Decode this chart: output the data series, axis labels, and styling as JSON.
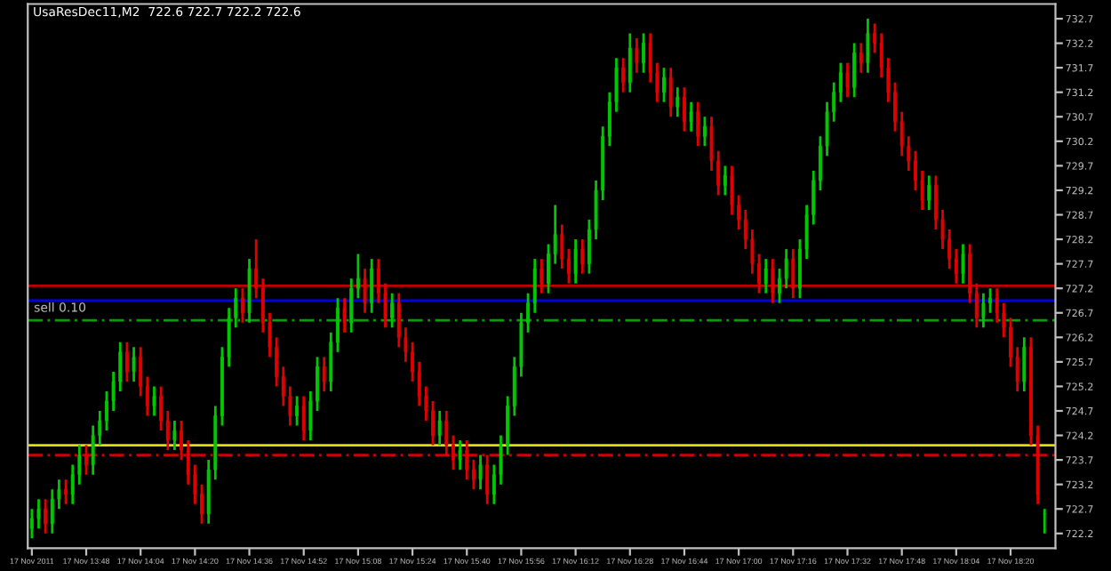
{
  "chart_data": {
    "type": "candlestick",
    "title": "UsaResDec11,M2  722.6 722.7 722.2 722.6",
    "categories": [
      "17 Nov 2011",
      null,
      null,
      null,
      null,
      null,
      null,
      null,
      "17 Nov 13:48",
      null,
      null,
      null,
      null,
      null,
      null,
      null,
      "17 Nov 14:04",
      null,
      null,
      null,
      null,
      null,
      null,
      null,
      "17 Nov 14:20",
      null,
      null,
      null,
      null,
      null,
      null,
      null,
      "17 Nov 14:36",
      null,
      null,
      null,
      null,
      null,
      null,
      null,
      "17 Nov 14:52",
      null,
      null,
      null,
      null,
      null,
      null,
      null,
      "17 Nov 15:08",
      null,
      null,
      null,
      null,
      null,
      null,
      null,
      "17 Nov 15:24",
      null,
      null,
      null,
      null,
      null,
      null,
      null,
      "17 Nov 15:40",
      null,
      null,
      null,
      null,
      null,
      null,
      null,
      "17 Nov 15:56",
      null,
      null,
      null,
      null,
      null,
      null,
      null,
      "17 Nov 16:12",
      null,
      null,
      null,
      null,
      null,
      null,
      null,
      "17 Nov 16:28",
      null,
      null,
      null,
      null,
      null,
      null,
      null,
      "17 Nov 16:44",
      null,
      null,
      null,
      null,
      null,
      null,
      null,
      "17 Nov 17:00",
      null,
      null,
      null,
      null,
      null,
      null,
      null,
      "17 Nov 17:16",
      null,
      null,
      null,
      null,
      null,
      null,
      null,
      "17 Nov 17:32",
      null,
      null,
      null,
      null,
      null,
      null,
      null,
      "17 Nov 17:48",
      null,
      null,
      null,
      null,
      null,
      null,
      null,
      "17 Nov 18:04",
      null,
      null,
      null,
      null,
      null,
      null,
      null,
      "17 Nov 18:20",
      null,
      null,
      null,
      null,
      null
    ],
    "ohlc": [
      [
        722.3,
        722.7,
        722.1,
        722.5
      ],
      [
        722.5,
        722.9,
        722.3,
        722.7
      ],
      [
        722.7,
        722.9,
        722.2,
        722.4
      ],
      [
        722.4,
        723.1,
        722.2,
        722.9
      ],
      [
        722.9,
        723.3,
        722.7,
        723.1
      ],
      [
        723.1,
        723.3,
        722.8,
        723.0
      ],
      [
        723.0,
        723.6,
        722.8,
        723.4
      ],
      [
        723.4,
        724.0,
        723.2,
        723.8
      ],
      [
        723.8,
        724.0,
        723.4,
        723.6
      ],
      [
        723.6,
        724.4,
        723.4,
        724.2
      ],
      [
        724.2,
        724.7,
        724.0,
        724.5
      ],
      [
        724.5,
        725.1,
        724.3,
        724.9
      ],
      [
        724.9,
        725.5,
        724.7,
        725.3
      ],
      [
        725.3,
        726.1,
        725.1,
        725.9
      ],
      [
        725.9,
        726.1,
        725.3,
        725.5
      ],
      [
        725.5,
        726.0,
        725.3,
        725.8
      ],
      [
        725.8,
        726.0,
        725.0,
        725.2
      ],
      [
        725.2,
        725.4,
        724.6,
        724.8
      ],
      [
        724.8,
        725.2,
        724.6,
        725.0
      ],
      [
        725.0,
        725.2,
        724.3,
        724.5
      ],
      [
        724.5,
        724.7,
        723.9,
        724.1
      ],
      [
        724.1,
        724.5,
        723.9,
        724.3
      ],
      [
        724.3,
        724.5,
        723.7,
        723.9
      ],
      [
        723.9,
        724.1,
        723.2,
        723.4
      ],
      [
        723.4,
        723.6,
        722.8,
        723.0
      ],
      [
        723.0,
        723.2,
        722.4,
        722.6
      ],
      [
        722.6,
        723.7,
        722.4,
        723.5
      ],
      [
        723.5,
        724.8,
        723.3,
        724.6
      ],
      [
        724.6,
        726.0,
        724.4,
        725.8
      ],
      [
        725.8,
        726.8,
        725.6,
        726.6
      ],
      [
        726.6,
        727.2,
        726.4,
        727.0
      ],
      [
        727.0,
        727.2,
        726.5,
        726.7
      ],
      [
        726.7,
        727.8,
        726.5,
        727.6
      ],
      [
        727.6,
        728.2,
        727.0,
        727.2
      ],
      [
        727.2,
        727.4,
        726.3,
        726.5
      ],
      [
        726.5,
        726.7,
        725.8,
        726.0
      ],
      [
        726.0,
        726.2,
        725.2,
        725.4
      ],
      [
        725.4,
        725.6,
        724.8,
        725.0
      ],
      [
        725.0,
        725.2,
        724.4,
        724.6
      ],
      [
        724.6,
        725.0,
        724.4,
        724.8
      ],
      [
        724.8,
        725.0,
        724.1,
        724.3
      ],
      [
        724.3,
        725.1,
        724.1,
        724.9
      ],
      [
        724.9,
        725.8,
        724.7,
        725.6
      ],
      [
        725.6,
        725.8,
        725.1,
        725.3
      ],
      [
        725.3,
        726.3,
        725.1,
        726.1
      ],
      [
        726.1,
        727.0,
        725.9,
        726.8
      ],
      [
        726.8,
        727.0,
        726.3,
        726.5
      ],
      [
        726.5,
        727.4,
        726.3,
        727.2
      ],
      [
        727.2,
        727.9,
        727.0,
        727.4
      ],
      [
        727.4,
        727.6,
        726.7,
        726.9
      ],
      [
        726.9,
        727.8,
        726.7,
        727.6
      ],
      [
        727.6,
        727.8,
        726.9,
        727.1
      ],
      [
        727.1,
        727.3,
        726.4,
        726.6
      ],
      [
        726.6,
        727.1,
        726.4,
        726.9
      ],
      [
        726.9,
        727.1,
        726.0,
        726.2
      ],
      [
        726.2,
        726.4,
        725.7,
        725.9
      ],
      [
        725.9,
        726.1,
        725.3,
        725.5
      ],
      [
        725.5,
        725.7,
        724.8,
        725.0
      ],
      [
        725.0,
        725.2,
        724.5,
        724.7
      ],
      [
        724.7,
        724.9,
        724.0,
        724.2
      ],
      [
        724.2,
        724.7,
        724.0,
        724.5
      ],
      [
        724.5,
        724.7,
        723.8,
        724.0
      ],
      [
        724.0,
        724.2,
        723.5,
        723.7
      ],
      [
        723.7,
        724.1,
        723.5,
        723.9
      ],
      [
        723.9,
        724.1,
        723.3,
        723.5
      ],
      [
        723.5,
        723.7,
        723.1,
        723.3
      ],
      [
        723.3,
        723.8,
        723.1,
        723.6
      ],
      [
        723.6,
        723.8,
        722.8,
        723.0
      ],
      [
        723.0,
        723.6,
        722.8,
        723.4
      ],
      [
        723.4,
        724.2,
        723.2,
        724.0
      ],
      [
        724.0,
        725.0,
        723.8,
        724.8
      ],
      [
        724.8,
        725.8,
        724.6,
        725.6
      ],
      [
        725.6,
        726.7,
        725.4,
        726.5
      ],
      [
        726.5,
        727.1,
        726.3,
        726.9
      ],
      [
        726.9,
        727.8,
        726.7,
        727.6
      ],
      [
        727.6,
        727.8,
        727.1,
        727.3
      ],
      [
        727.3,
        728.1,
        727.1,
        727.9
      ],
      [
        727.9,
        728.9,
        727.7,
        728.3
      ],
      [
        728.3,
        728.5,
        727.6,
        727.8
      ],
      [
        727.8,
        728.0,
        727.3,
        727.5
      ],
      [
        727.5,
        728.2,
        727.3,
        728.0
      ],
      [
        728.0,
        728.2,
        727.5,
        727.7
      ],
      [
        727.7,
        728.6,
        727.5,
        728.4
      ],
      [
        728.4,
        729.4,
        728.2,
        729.2
      ],
      [
        729.2,
        730.5,
        729.0,
        730.3
      ],
      [
        730.3,
        731.2,
        730.1,
        731.0
      ],
      [
        731.0,
        731.9,
        730.8,
        731.7
      ],
      [
        731.7,
        731.9,
        731.2,
        731.4
      ],
      [
        731.4,
        732.4,
        731.2,
        732.1
      ],
      [
        732.1,
        732.3,
        731.6,
        731.8
      ],
      [
        731.8,
        732.4,
        731.6,
        732.2
      ],
      [
        732.2,
        732.4,
        731.4,
        731.6
      ],
      [
        731.6,
        731.8,
        731.0,
        731.2
      ],
      [
        731.2,
        731.7,
        731.0,
        731.5
      ],
      [
        731.5,
        731.7,
        730.7,
        730.9
      ],
      [
        730.9,
        731.3,
        730.7,
        731.1
      ],
      [
        731.1,
        731.3,
        730.4,
        730.6
      ],
      [
        730.6,
        731.0,
        730.4,
        730.8
      ],
      [
        730.8,
        731.0,
        730.1,
        730.3
      ],
      [
        730.3,
        730.7,
        730.1,
        730.5
      ],
      [
        730.5,
        730.7,
        729.6,
        729.8
      ],
      [
        729.8,
        730.0,
        729.1,
        729.3
      ],
      [
        729.3,
        729.7,
        729.1,
        729.5
      ],
      [
        729.5,
        729.7,
        728.7,
        728.9
      ],
      [
        728.9,
        729.1,
        728.4,
        728.6
      ],
      [
        728.6,
        728.8,
        728.0,
        728.2
      ],
      [
        728.2,
        728.4,
        727.5,
        727.7
      ],
      [
        727.7,
        727.9,
        727.1,
        727.3
      ],
      [
        727.3,
        727.8,
        727.1,
        727.6
      ],
      [
        727.6,
        727.8,
        726.9,
        727.1
      ],
      [
        727.1,
        727.6,
        726.9,
        727.4
      ],
      [
        727.4,
        728.0,
        727.2,
        727.8
      ],
      [
        727.8,
        728.0,
        727.0,
        727.2
      ],
      [
        727.2,
        728.2,
        727.0,
        728.0
      ],
      [
        728.0,
        728.9,
        727.8,
        728.7
      ],
      [
        728.7,
        729.6,
        728.5,
        729.4
      ],
      [
        729.4,
        730.3,
        729.2,
        730.1
      ],
      [
        730.1,
        731.0,
        729.9,
        730.8
      ],
      [
        730.8,
        731.4,
        730.6,
        731.2
      ],
      [
        731.2,
        731.8,
        731.0,
        731.6
      ],
      [
        731.6,
        731.8,
        731.1,
        731.3
      ],
      [
        731.3,
        732.2,
        731.1,
        732.0
      ],
      [
        732.0,
        732.2,
        731.6,
        731.8
      ],
      [
        731.8,
        732.7,
        731.6,
        732.4
      ],
      [
        732.4,
        732.6,
        732.0,
        732.2
      ],
      [
        732.2,
        732.4,
        731.5,
        731.7
      ],
      [
        731.7,
        731.9,
        731.0,
        731.2
      ],
      [
        731.2,
        731.4,
        730.4,
        730.6
      ],
      [
        730.6,
        730.8,
        729.9,
        730.1
      ],
      [
        730.1,
        730.3,
        729.6,
        729.8
      ],
      [
        729.8,
        730.0,
        729.2,
        729.4
      ],
      [
        729.4,
        729.6,
        728.8,
        729.0
      ],
      [
        729.0,
        729.5,
        728.8,
        729.3
      ],
      [
        729.3,
        729.5,
        728.4,
        728.6
      ],
      [
        728.6,
        728.8,
        728.0,
        728.2
      ],
      [
        728.2,
        728.4,
        727.6,
        727.8
      ],
      [
        727.8,
        728.0,
        727.3,
        727.5
      ],
      [
        727.5,
        728.1,
        727.3,
        727.9
      ],
      [
        727.9,
        728.1,
        726.9,
        727.1
      ],
      [
        727.1,
        727.3,
        726.4,
        726.6
      ],
      [
        726.6,
        727.1,
        726.4,
        726.9
      ],
      [
        726.9,
        727.2,
        726.7,
        727.0
      ],
      [
        727.0,
        727.2,
        726.5,
        726.7
      ],
      [
        726.7,
        726.9,
        726.2,
        726.4
      ],
      [
        726.4,
        726.6,
        725.6,
        725.8
      ],
      [
        725.8,
        726.0,
        725.1,
        725.3
      ],
      [
        725.3,
        726.2,
        725.1,
        726.0
      ],
      [
        726.0,
        726.2,
        724.0,
        724.2
      ],
      [
        724.2,
        724.4,
        722.8,
        723.0
      ],
      [
        722.6,
        722.7,
        722.2,
        722.6
      ]
    ],
    "colors": [
      "#00c800",
      "#00c800",
      "#e00000",
      "#00c800",
      "#00c800",
      "#e00000",
      "#00c800",
      "#00c800",
      "#e00000",
      "#00c800",
      "#00c800",
      "#00c800",
      "#00c800",
      "#00c800",
      "#e00000",
      "#00c800",
      "#e00000",
      "#e00000",
      "#00c800",
      "#e00000",
      "#e00000",
      "#00c800",
      "#e00000",
      "#e00000",
      "#e00000",
      "#e00000",
      "#00c800",
      "#00c800",
      "#00c800",
      "#00c800",
      "#00c800",
      "#e00000",
      "#00c800",
      "#e00000",
      "#e00000",
      "#e00000",
      "#e00000",
      "#e00000",
      "#e00000",
      "#00c800",
      "#e00000",
      "#00c800",
      "#00c800",
      "#e00000",
      "#00c800",
      "#00c800",
      "#e00000",
      "#00c800",
      "#00c800",
      "#e00000",
      "#00c800",
      "#e00000",
      "#e00000",
      "#00c800",
      "#e00000",
      "#e00000",
      "#e00000",
      "#e00000",
      "#e00000",
      "#e00000",
      "#00c800",
      "#e00000",
      "#e00000",
      "#00c800",
      "#e00000",
      "#e00000",
      "#00c800",
      "#e00000",
      "#00c800",
      "#00c800",
      "#00c800",
      "#00c800",
      "#00c800",
      "#00c800",
      "#00c800",
      "#e00000",
      "#00c800",
      "#00c800",
      "#e00000",
      "#e00000",
      "#00c800",
      "#e00000",
      "#00c800",
      "#00c800",
      "#00c800",
      "#00c800",
      "#00c800",
      "#e00000",
      "#00c800",
      "#e00000",
      "#00c800",
      "#e00000",
      "#e00000",
      "#00c800",
      "#e00000",
      "#00c800",
      "#e00000",
      "#00c800",
      "#e00000",
      "#00c800",
      "#e00000",
      "#e00000",
      "#00c800",
      "#e00000",
      "#e00000",
      "#e00000",
      "#e00000",
      "#e00000",
      "#00c800",
      "#e00000",
      "#00c800",
      "#00c800",
      "#e00000",
      "#00c800",
      "#00c800",
      "#00c800",
      "#00c800",
      "#00c800",
      "#00c800",
      "#00c800",
      "#e00000",
      "#00c800",
      "#e00000",
      "#00c800",
      "#e00000",
      "#e00000",
      "#e00000",
      "#e00000",
      "#e00000",
      "#e00000",
      "#e00000",
      "#e00000",
      "#00c800",
      "#e00000",
      "#e00000",
      "#e00000",
      "#e00000",
      "#00c800",
      "#e00000",
      "#e00000",
      "#00c800",
      "#00c800",
      "#e00000",
      "#e00000",
      "#e00000",
      "#e00000",
      "#00c800",
      "#e00000",
      "#e00000",
      "#00c800"
    ],
    "ylim": [
      721.9,
      733.0
    ],
    "yticks": [
      722.2,
      722.7,
      723.2,
      723.7,
      724.2,
      724.7,
      725.2,
      725.7,
      726.2,
      726.7,
      727.2,
      727.7,
      728.2,
      728.7,
      729.2,
      729.7,
      730.2,
      730.7,
      731.2,
      731.7,
      732.2,
      732.7
    ],
    "ref_lines": [
      {
        "axis": "y",
        "value": 727.25,
        "color": "#c00000",
        "line_style": "solid"
      },
      {
        "axis": "y",
        "value": 726.95,
        "color": "#0000e0",
        "line_style": "solid"
      },
      {
        "axis": "y",
        "value": 726.55,
        "color": "#00a000",
        "line_style": "dashed",
        "label": "sell 0.10"
      },
      {
        "axis": "y",
        "value": 724.0,
        "color": "#e0e000",
        "line_style": "solid"
      },
      {
        "axis": "y",
        "value": 723.8,
        "color": "#d00000",
        "line_style": "dashed"
      }
    ],
    "grid": false
  }
}
